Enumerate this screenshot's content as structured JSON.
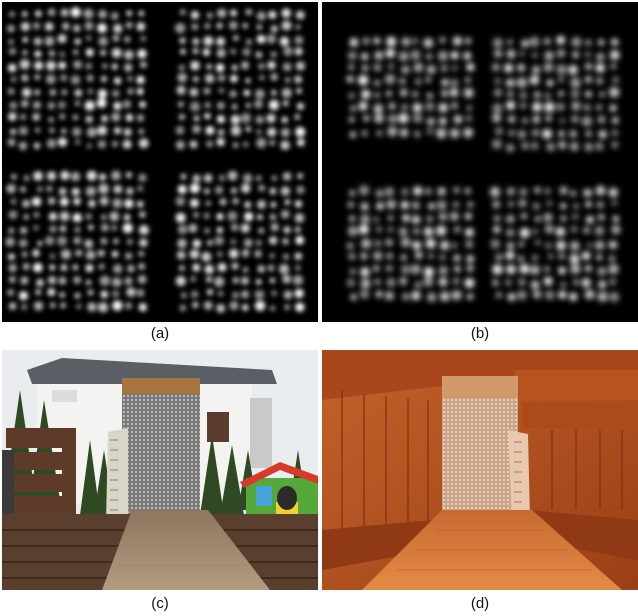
{
  "panels": [
    {
      "id": "a",
      "caption": "(a)",
      "kind": "dot-grid-response-map"
    },
    {
      "id": "b",
      "caption": "(b)",
      "kind": "dot-grid-response-map"
    },
    {
      "id": "c",
      "caption": "(c)",
      "kind": "outdoor-photo-calibration-board"
    },
    {
      "id": "d",
      "caption": "(d)",
      "kind": "sauna-photo-calibration-board"
    }
  ],
  "colors": {
    "map_background": "#000000",
    "map_dots": "#ffffff",
    "sauna_wood": "#b5521f",
    "deck_wood": "#8b6a4e",
    "sky": "#e8ecef"
  }
}
